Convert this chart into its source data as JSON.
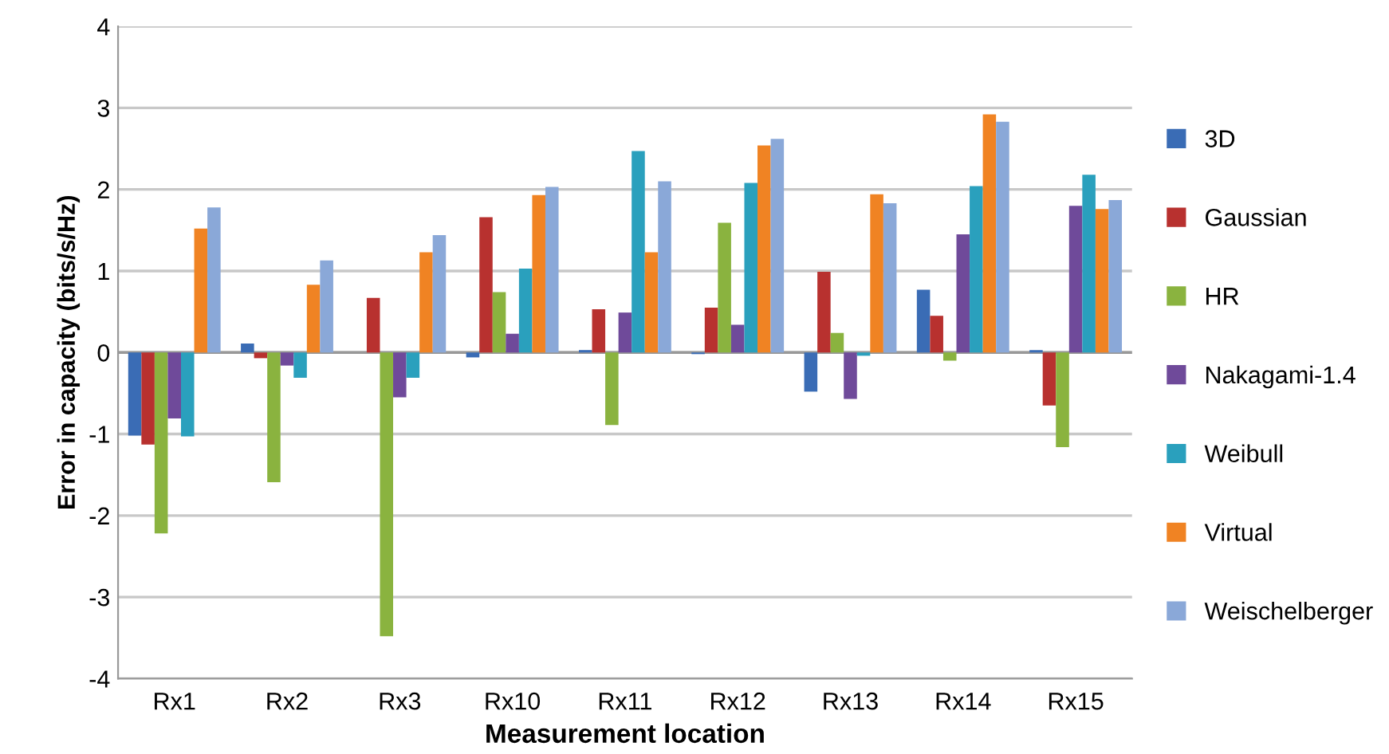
{
  "chart_data": {
    "type": "bar",
    "xlabel": "Measurement location",
    "ylabel": "Error in capacity (bits/s/Hz)",
    "categories": [
      "Rx1",
      "Rx2",
      "Rx3",
      "Rx10",
      "Rx11",
      "Rx12",
      "Rx13",
      "Rx14",
      "Rx15"
    ],
    "series": [
      {
        "name": "3D",
        "color": "#3a6cb5",
        "values": [
          -1.02,
          0.11,
          0,
          -0.06,
          0.03,
          -0.02,
          -0.48,
          0.77,
          0.03
        ]
      },
      {
        "name": "Gaussian",
        "color": "#b8312f",
        "values": [
          -1.13,
          -0.07,
          0.67,
          1.66,
          0.53,
          0.55,
          0.99,
          0.45,
          -0.65
        ]
      },
      {
        "name": "HR",
        "color": "#8ab33f",
        "values": [
          -2.22,
          -1.59,
          -3.48,
          0.74,
          -0.89,
          1.59,
          0.24,
          -0.1,
          -1.16
        ]
      },
      {
        "name": "Nakagami-1.4",
        "color": "#6f4a9a",
        "values": [
          -0.81,
          -0.16,
          -0.55,
          0.23,
          0.49,
          0.34,
          -0.57,
          1.45,
          1.8
        ]
      },
      {
        "name": "Weibull",
        "color": "#2aa0bd",
        "values": [
          -1.03,
          -0.31,
          -0.31,
          1.03,
          2.47,
          2.08,
          -0.04,
          2.04,
          2.18
        ]
      },
      {
        "name": "Virtual",
        "color": "#f08323",
        "values": [
          1.52,
          0.83,
          1.23,
          1.93,
          1.23,
          2.54,
          1.94,
          2.92,
          1.76
        ]
      },
      {
        "name": "Weischelberger",
        "color": "#8aa8d8",
        "values": [
          1.78,
          1.13,
          1.44,
          2.03,
          2.1,
          2.62,
          1.83,
          2.83,
          1.87
        ]
      }
    ],
    "ylim": [
      -4,
      4
    ],
    "yticks": [
      -4,
      -3,
      -2,
      -1,
      0,
      1,
      2,
      3,
      4
    ],
    "grid": "y",
    "legend": "right"
  }
}
